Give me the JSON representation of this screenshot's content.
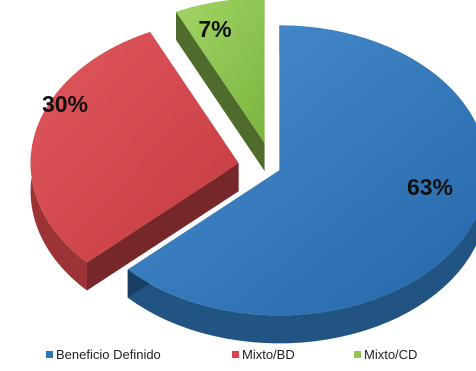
{
  "chart_data": {
    "type": "pie",
    "style": "3d-exploded",
    "legend_position": "bottom",
    "series": [
      {
        "name": "Beneficio Definido",
        "value": 63,
        "label": "63%",
        "color": "#2e75b6"
      },
      {
        "name": "Mixto/BD",
        "value": 30,
        "label": "30%",
        "color": "#d9474c"
      },
      {
        "name": "Mixto/CD",
        "value": 7,
        "label": "7%",
        "color": "#8fc450"
      }
    ]
  }
}
